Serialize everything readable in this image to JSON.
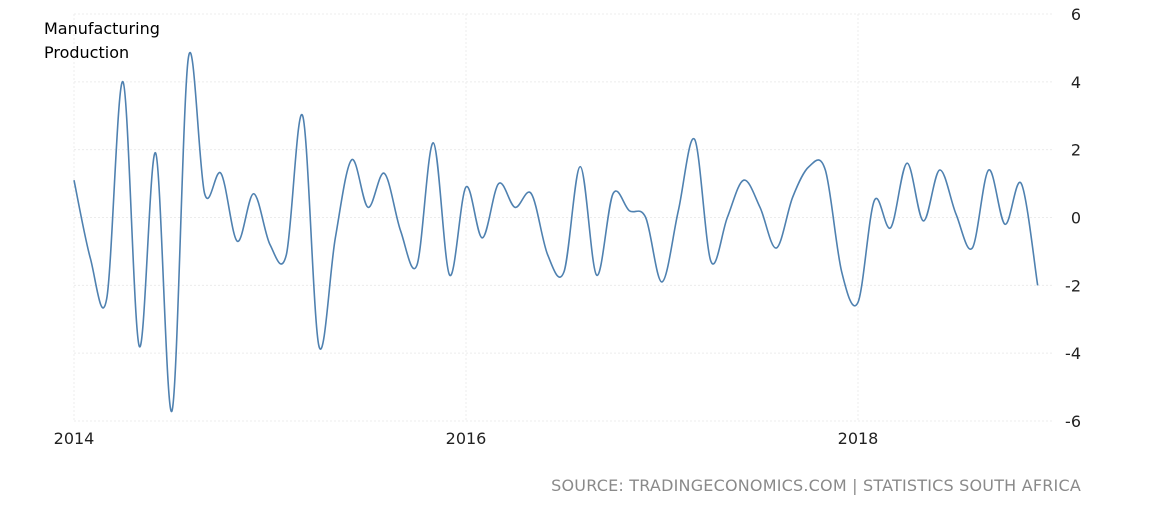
{
  "chart_data": {
    "type": "line",
    "legend_label": "Manufacturing Production",
    "legend_lines": [
      "Manufacturing",
      "Production"
    ],
    "legend_placement": "top-left",
    "ylim": [
      -6,
      6
    ],
    "y_ticks": [
      6,
      4,
      2,
      0,
      -2,
      -4,
      -6
    ],
    "x_range": [
      "2014-01",
      "2019-01"
    ],
    "x_ticks": [
      {
        "value": "2014-01",
        "label": "2014"
      },
      {
        "value": "2016-01",
        "label": "2016"
      },
      {
        "value": "2018-01",
        "label": "2018"
      }
    ],
    "grid": true,
    "line_color": "#4f81b0",
    "series": [
      {
        "x": [
          "2014-01",
          "2014-02",
          "2014-03",
          "2014-04",
          "2014-05",
          "2014-06",
          "2014-07",
          "2014-08",
          "2014-09",
          "2014-10",
          "2014-11",
          "2014-12",
          "2015-01",
          "2015-02",
          "2015-03",
          "2015-04",
          "2015-05",
          "2015-06",
          "2015-07",
          "2015-08",
          "2015-09",
          "2015-10",
          "2015-11",
          "2015-12",
          "2016-01",
          "2016-02",
          "2016-03",
          "2016-04",
          "2016-05",
          "2016-06",
          "2016-07",
          "2016-08",
          "2016-09",
          "2016-10",
          "2016-11",
          "2016-12",
          "2017-01",
          "2017-02",
          "2017-03",
          "2017-04",
          "2017-05",
          "2017-06",
          "2017-07",
          "2017-08",
          "2017-09",
          "2017-10",
          "2017-11",
          "2017-12",
          "2018-01",
          "2018-02",
          "2018-03",
          "2018-04",
          "2018-05",
          "2018-06",
          "2018-07",
          "2018-08",
          "2018-09",
          "2018-10",
          "2018-11",
          "2018-12",
          "2019-01"
        ],
        "values": [
          1.1,
          -1.2,
          -2.4,
          4.0,
          -3.8,
          1.9,
          -5.7,
          4.7,
          0.7,
          1.3,
          -0.7,
          0.7,
          -0.8,
          -1.1,
          3.0,
          -3.8,
          -0.6,
          1.7,
          0.3,
          1.3,
          -0.4,
          -1.4,
          2.2,
          -1.7,
          0.9,
          -0.6,
          1.0,
          0.3,
          0.7,
          -1.1,
          -1.6,
          1.5,
          -1.7,
          0.7,
          0.2,
          0.0,
          -1.9,
          0.2,
          2.3,
          -1.3,
          0.0,
          1.1,
          0.3,
          -0.9,
          0.6,
          1.5,
          1.4,
          -1.6,
          -2.5,
          0.5,
          -0.3,
          1.6,
          -0.1,
          1.4,
          0.1,
          -0.9,
          1.4,
          -0.2,
          1.0,
          -2.0,
          null
        ]
      }
    ]
  },
  "footer": {
    "source": "SOURCE: TRADINGECONOMICS.COM | STATISTICS SOUTH AFRICA"
  }
}
